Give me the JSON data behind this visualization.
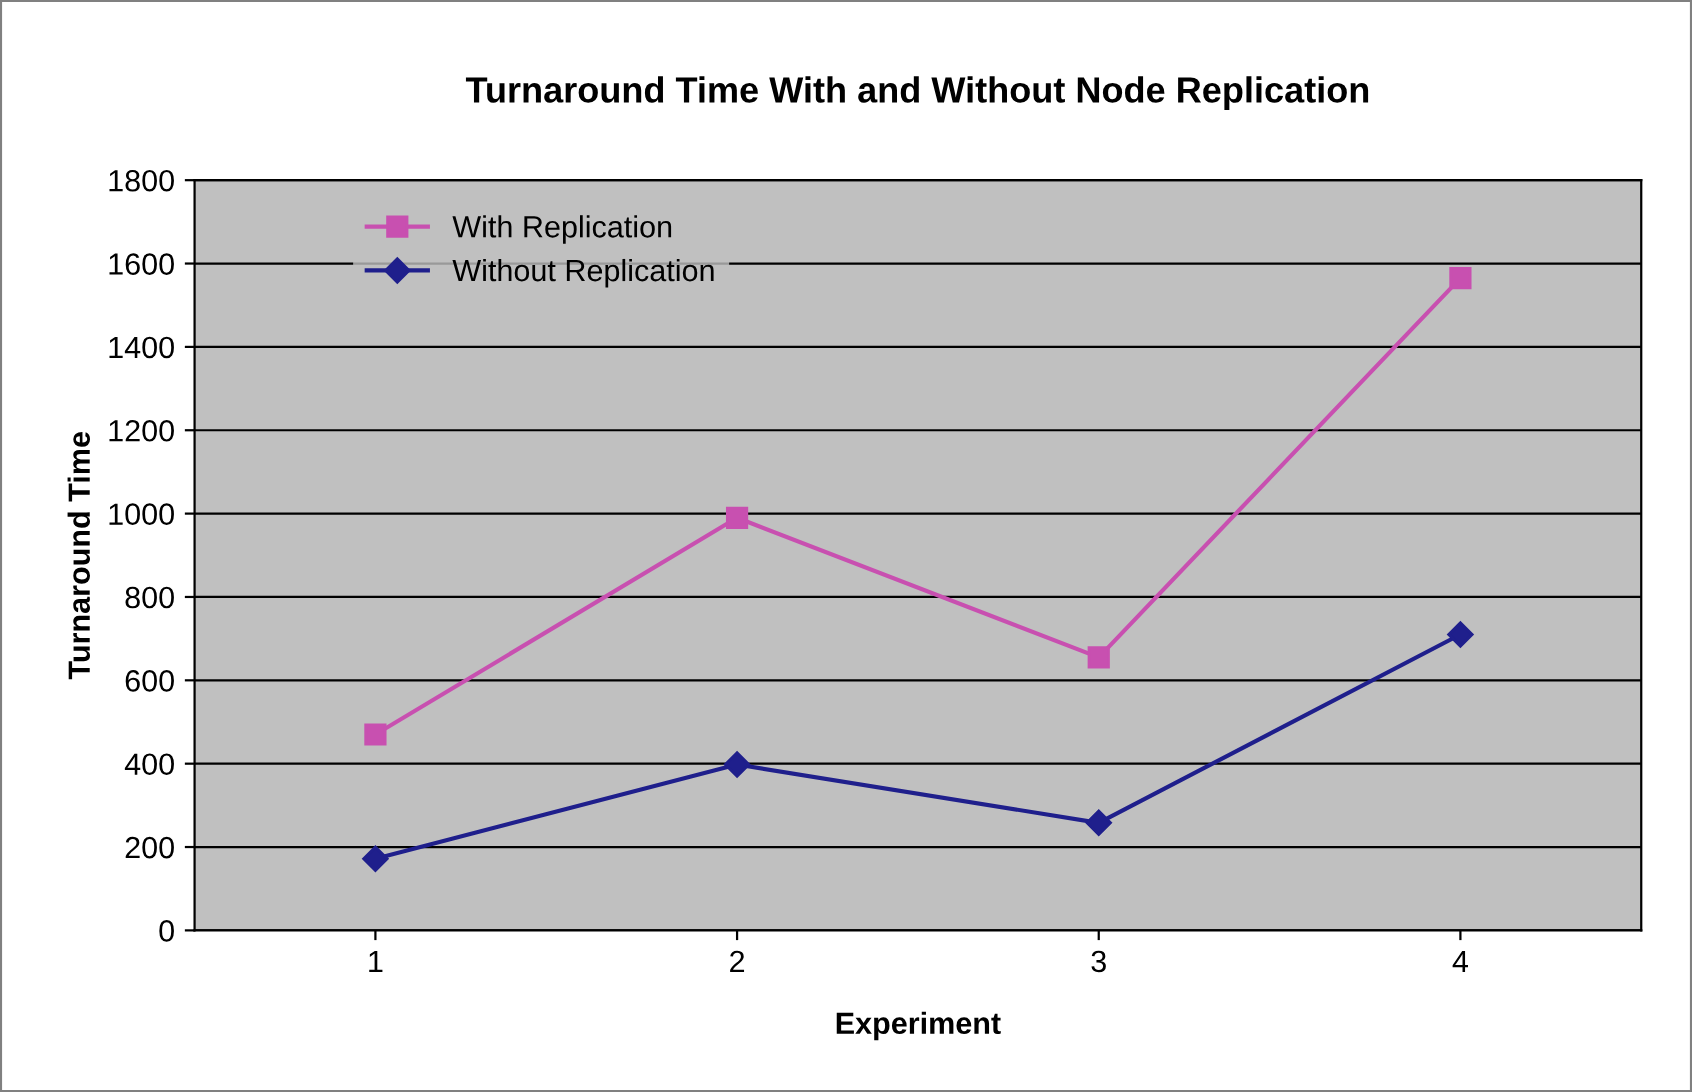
{
  "chart_data": {
    "type": "line",
    "title": "Turnaround Time With and Without Node Replication",
    "xlabel": "Experiment",
    "ylabel": "Turnaround Time",
    "categories": [
      "1",
      "2",
      "3",
      "4"
    ],
    "series": [
      {
        "name": "With Replication",
        "color": "#c850b0",
        "marker": "square",
        "values": [
          470,
          990,
          655,
          1565
        ]
      },
      {
        "name": "Without Replication",
        "color": "#1f1f8c",
        "marker": "diamond",
        "values": [
          172,
          398,
          258,
          710
        ]
      }
    ],
    "ylim": [
      0,
      1800
    ],
    "yticks": [
      0,
      200,
      400,
      600,
      800,
      1000,
      1200,
      1400,
      1600,
      1800
    ],
    "grid": "y",
    "legend": "top left",
    "line_style": "solid"
  }
}
